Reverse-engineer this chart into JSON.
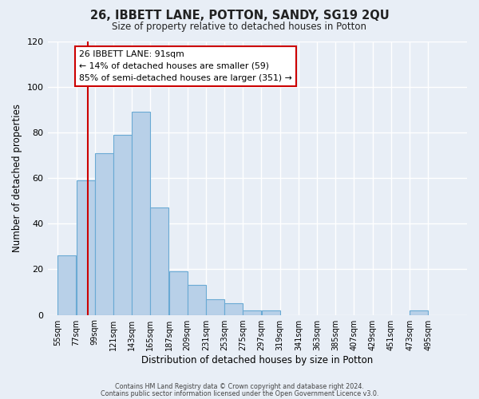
{
  "title": "26, IBBETT LANE, POTTON, SANDY, SG19 2QU",
  "subtitle": "Size of property relative to detached houses in Potton",
  "xlabel": "Distribution of detached houses by size in Potton",
  "ylabel": "Number of detached properties",
  "bar_color": "#b8d0e8",
  "bar_edge_color": "#6aaad4",
  "background_color": "#e8eef6",
  "bin_labels": [
    "55sqm",
    "77sqm",
    "99sqm",
    "121sqm",
    "143sqm",
    "165sqm",
    "187sqm",
    "209sqm",
    "231sqm",
    "253sqm",
    "275sqm",
    "297sqm",
    "319sqm",
    "341sqm",
    "363sqm",
    "385sqm",
    "407sqm",
    "429sqm",
    "451sqm",
    "473sqm",
    "495sqm"
  ],
  "bar_heights": [
    26,
    59,
    71,
    79,
    89,
    47,
    19,
    13,
    7,
    5,
    2,
    2,
    0,
    0,
    0,
    0,
    0,
    0,
    0,
    2,
    0
  ],
  "bin_edges": [
    55,
    77,
    99,
    121,
    143,
    165,
    187,
    209,
    231,
    253,
    275,
    297,
    319,
    341,
    363,
    385,
    407,
    429,
    451,
    473,
    495,
    517
  ],
  "ylim": [
    0,
    120
  ],
  "yticks": [
    0,
    20,
    40,
    60,
    80,
    100,
    120
  ],
  "red_line_x": 91,
  "annotation_title": "26 IBBETT LANE: 91sqm",
  "annotation_line1": "← 14% of detached houses are smaller (59)",
  "annotation_line2": "85% of semi-detached houses are larger (351) →",
  "annotation_box_color": "#ffffff",
  "annotation_box_edge": "#cc0000",
  "red_line_color": "#cc0000",
  "footer_line1": "Contains HM Land Registry data © Crown copyright and database right 2024.",
  "footer_line2": "Contains public sector information licensed under the Open Government Licence v3.0."
}
